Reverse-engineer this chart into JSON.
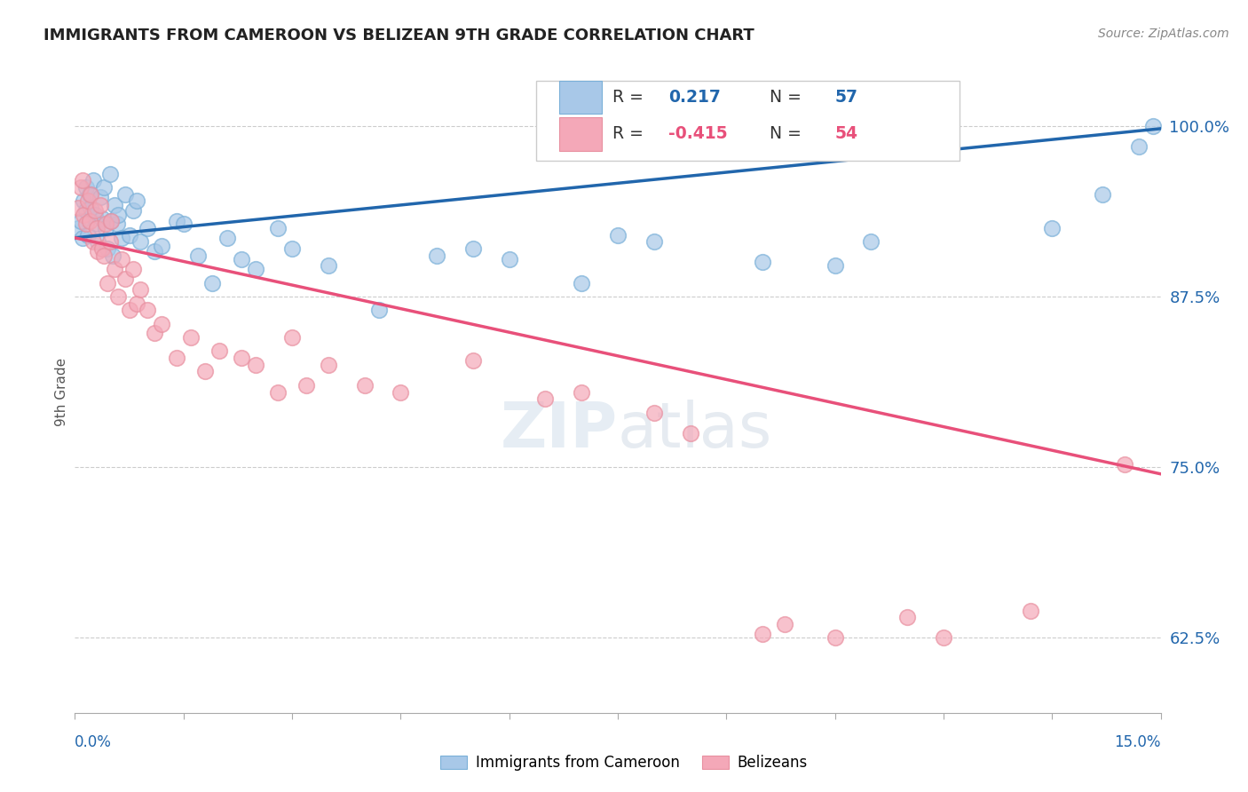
{
  "title": "IMMIGRANTS FROM CAMEROON VS BELIZEAN 9TH GRADE CORRELATION CHART",
  "source": "Source: ZipAtlas.com",
  "ylabel": "9th Grade",
  "xmin": 0.0,
  "xmax": 15.0,
  "ymin": 57.0,
  "ymax": 104.0,
  "yticks": [
    62.5,
    75.0,
    87.5,
    100.0
  ],
  "ytick_labels": [
    "62.5%",
    "75.0%",
    "87.5%",
    "100.0%"
  ],
  "R_blue": 0.217,
  "N_blue": 57,
  "R_pink": -0.415,
  "N_pink": 54,
  "blue_color": "#a8c8e8",
  "pink_color": "#f4a8b8",
  "blue_edge_color": "#7ab0d8",
  "pink_edge_color": "#e890a0",
  "blue_line_color": "#2166ac",
  "pink_line_color": "#e8507a",
  "legend_label_blue": "Immigrants from Cameroon",
  "legend_label_pink": "Belizeans",
  "blue_trend_x0": 0.0,
  "blue_trend_y0": 91.8,
  "blue_trend_x1": 15.0,
  "blue_trend_y1": 99.8,
  "pink_trend_x0": 0.0,
  "pink_trend_y0": 91.8,
  "pink_trend_x1": 15.0,
  "pink_trend_y1": 74.5,
  "blue_x": [
    0.05,
    0.08,
    0.1,
    0.12,
    0.15,
    0.15,
    0.18,
    0.2,
    0.22,
    0.25,
    0.28,
    0.3,
    0.32,
    0.35,
    0.38,
    0.4,
    0.42,
    0.45,
    0.48,
    0.5,
    0.52,
    0.55,
    0.58,
    0.6,
    0.65,
    0.7,
    0.75,
    0.8,
    0.85,
    0.9,
    1.0,
    1.1,
    1.2,
    1.4,
    1.5,
    1.7,
    1.9,
    2.1,
    2.3,
    2.5,
    2.8,
    3.0,
    3.5,
    4.2,
    5.0,
    5.5,
    6.0,
    7.0,
    7.5,
    8.0,
    9.5,
    10.5,
    11.0,
    13.5,
    14.2,
    14.7,
    14.9
  ],
  "blue_y": [
    92.5,
    93.0,
    91.8,
    94.5,
    95.5,
    93.8,
    92.0,
    95.0,
    94.0,
    96.0,
    93.5,
    92.8,
    91.5,
    94.8,
    93.2,
    95.5,
    92.5,
    91.0,
    96.5,
    93.0,
    90.5,
    94.2,
    92.8,
    93.5,
    91.8,
    95.0,
    92.0,
    93.8,
    94.5,
    91.5,
    92.5,
    90.8,
    91.2,
    93.0,
    92.8,
    90.5,
    88.5,
    91.8,
    90.2,
    89.5,
    92.5,
    91.0,
    89.8,
    86.5,
    90.5,
    91.0,
    90.2,
    88.5,
    92.0,
    91.5,
    90.0,
    89.8,
    91.5,
    92.5,
    95.0,
    98.5,
    100.0
  ],
  "pink_x": [
    0.05,
    0.08,
    0.1,
    0.12,
    0.15,
    0.18,
    0.2,
    0.22,
    0.25,
    0.28,
    0.3,
    0.32,
    0.35,
    0.38,
    0.4,
    0.42,
    0.45,
    0.48,
    0.5,
    0.55,
    0.6,
    0.65,
    0.7,
    0.75,
    0.8,
    0.85,
    0.9,
    1.0,
    1.1,
    1.2,
    1.4,
    1.6,
    1.8,
    2.0,
    2.3,
    2.5,
    2.8,
    3.0,
    3.2,
    3.5,
    4.0,
    4.5,
    5.5,
    6.5,
    7.0,
    8.0,
    8.5,
    9.5,
    9.8,
    10.5,
    11.5,
    12.0,
    13.2,
    14.5
  ],
  "pink_y": [
    94.0,
    95.5,
    96.0,
    93.5,
    92.8,
    94.5,
    93.0,
    95.0,
    91.5,
    93.8,
    92.5,
    90.8,
    94.2,
    91.0,
    90.5,
    92.8,
    88.5,
    91.5,
    93.0,
    89.5,
    87.5,
    90.2,
    88.8,
    86.5,
    89.5,
    87.0,
    88.0,
    86.5,
    84.8,
    85.5,
    83.0,
    84.5,
    82.0,
    83.5,
    83.0,
    82.5,
    80.5,
    84.5,
    81.0,
    82.5,
    81.0,
    80.5,
    82.8,
    80.0,
    80.5,
    79.0,
    77.5,
    62.8,
    63.5,
    62.5,
    64.0,
    62.5,
    64.5,
    75.2
  ]
}
